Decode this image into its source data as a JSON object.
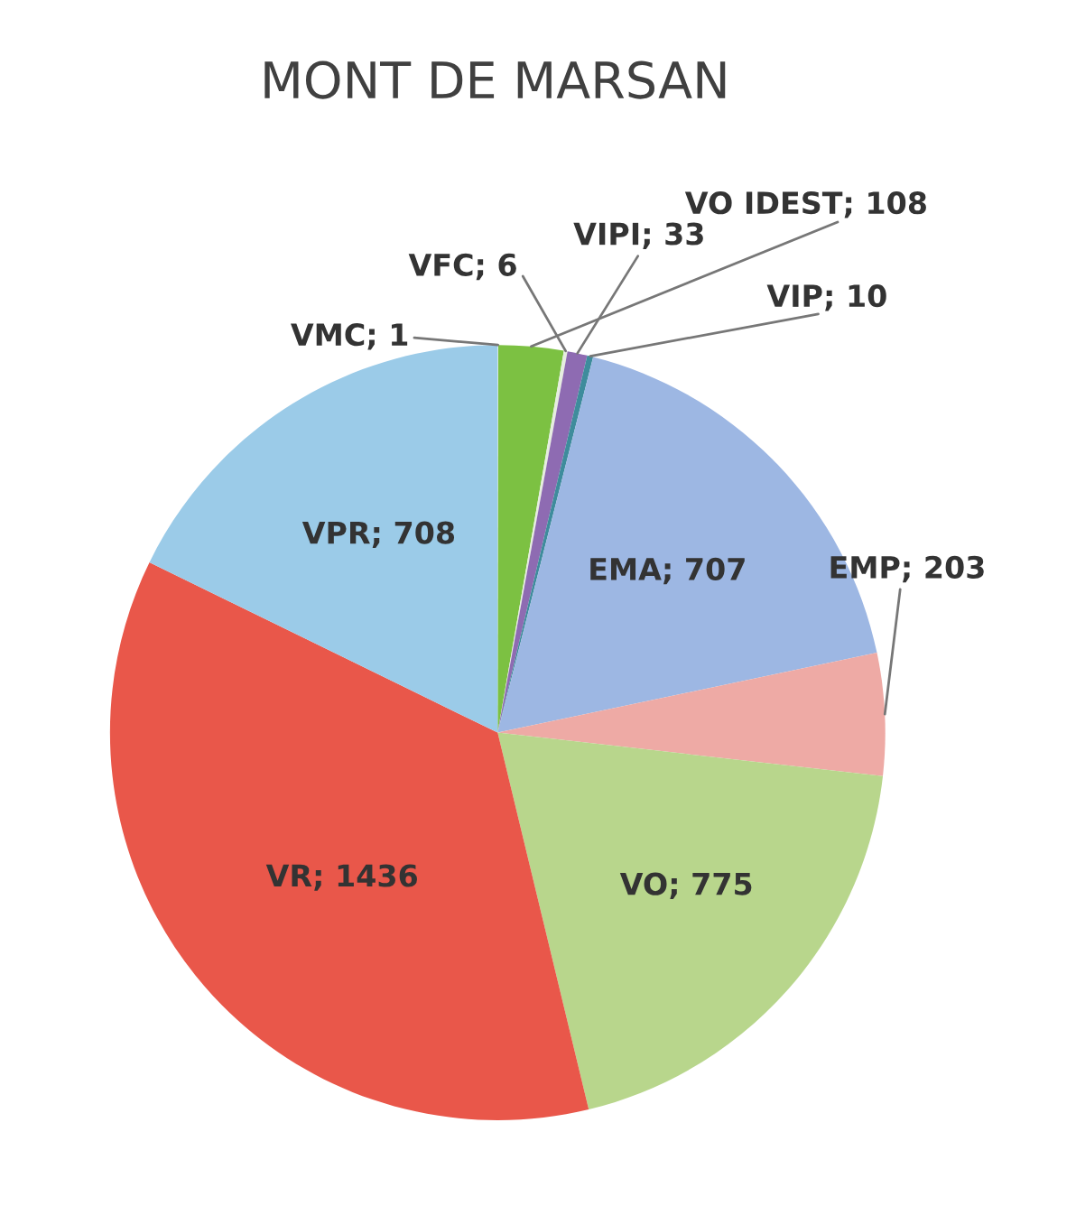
{
  "chart_data": {
    "type": "pie",
    "title": "MONT DE MARSAN",
    "categories": [
      "VMC",
      "VO IDEST",
      "VFC",
      "VIPI",
      "VIP",
      "EMA",
      "EMP",
      "VO",
      "VR",
      "VPR"
    ],
    "values": [
      1,
      108,
      6,
      33,
      10,
      707,
      203,
      775,
      1436,
      708
    ],
    "colors": [
      "#f4f4f4",
      "#7cc142",
      "#e6ede0",
      "#8e6bb2",
      "#3e8c9c",
      "#9db7e3",
      "#eeaaa5",
      "#b8d68c",
      "#e9574a",
      "#9bcbe8"
    ],
    "value_labels": [
      "; 1",
      "; 108",
      "; 6",
      "; 33",
      "; 10",
      "; 707",
      "; 203",
      "; 775",
      "; 1436",
      "; 708"
    ],
    "legend": false
  }
}
